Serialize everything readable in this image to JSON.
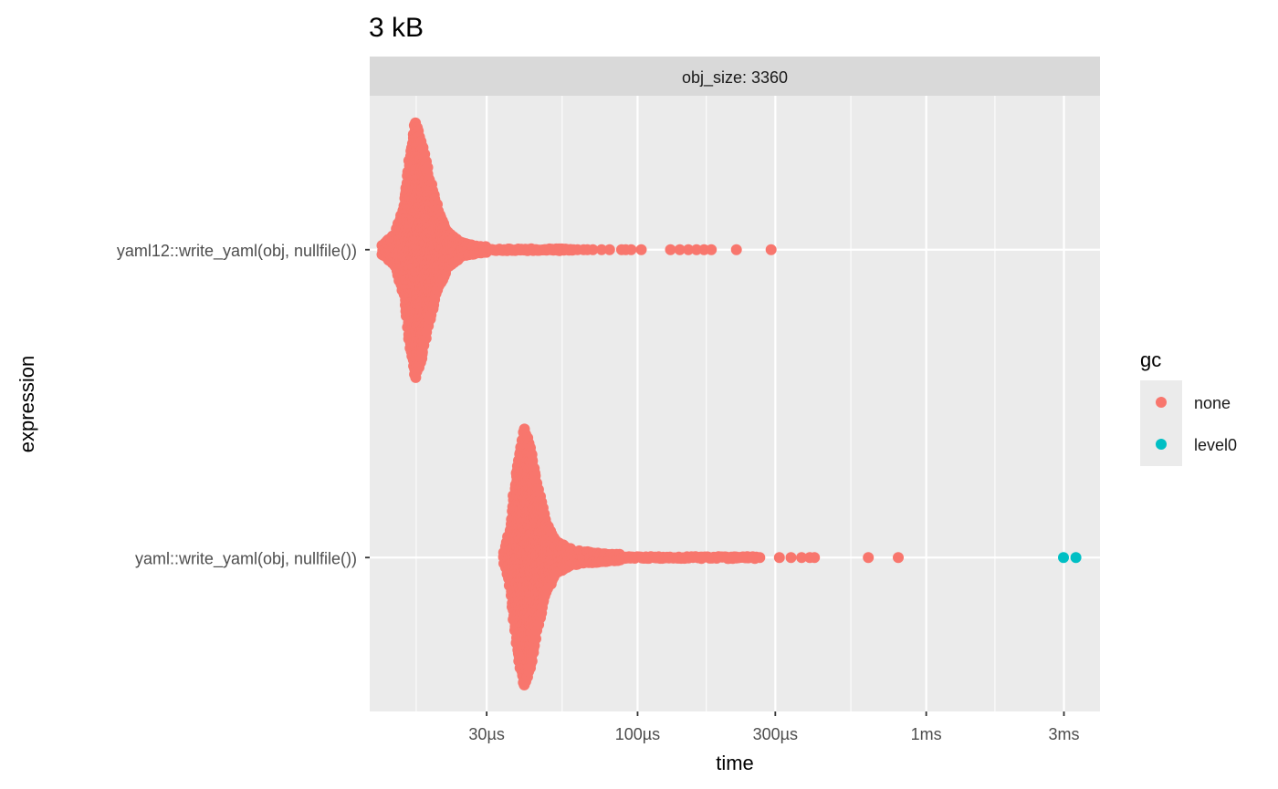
{
  "chart_data": {
    "type": "scatter",
    "subtype": "beeswarm (violin-shaped jittered points)",
    "title": "3 kB",
    "facet_label": "obj_size: 3360",
    "xlabel": "time",
    "ylabel": "expression",
    "x_scale": "log10",
    "x_unit": "seconds",
    "xlim": [
      1.18e-05,
      0.004
    ],
    "x_ticks": [
      {
        "value": 3e-05,
        "label": "30µs"
      },
      {
        "value": 0.0001,
        "label": "100µs"
      },
      {
        "value": 0.0003,
        "label": "300µs"
      },
      {
        "value": 0.001,
        "label": "1ms"
      },
      {
        "value": 0.003,
        "label": "3ms"
      }
    ],
    "x_minor_grid": [
      1.71e-05,
      5.48e-05,
      0.000173,
      0.000548,
      0.00173
    ],
    "categories": [
      "yaml12::write_yaml(obj, nullfile())",
      "yaml::write_yaml(obj, nullfile())"
    ],
    "legend": {
      "title": "gc",
      "position": "right",
      "entries": [
        {
          "label": "none",
          "color": "#F8766D"
        },
        {
          "label": "level0",
          "color": "#00BFC4"
        }
      ]
    },
    "series": [
      {
        "category": "yaml12::write_yaml(obj, nullfile())",
        "gc": "none",
        "color": "#F8766D",
        "density_profile": [
          [
            1.3e-05,
            0.03
          ],
          [
            1.45e-05,
            0.12
          ],
          [
            1.55e-05,
            0.35
          ],
          [
            1.62e-05,
            0.7
          ],
          [
            1.7e-05,
            1.0
          ],
          [
            1.78e-05,
            0.85
          ],
          [
            1.9e-05,
            0.55
          ],
          [
            2.05e-05,
            0.28
          ],
          [
            2.2e-05,
            0.13
          ],
          [
            2.45e-05,
            0.05
          ],
          [
            2.8e-05,
            0.02
          ],
          [
            4e-05,
            0.008
          ],
          [
            6e-05,
            0.004
          ]
        ],
        "max_halfwidth": 0.42,
        "outliers": [
          6.2e-05,
          6.5e-05,
          6.7e-05,
          7e-05,
          7.5e-05,
          8e-05,
          8.8e-05,
          9.1e-05,
          9.5e-05,
          0.000103,
          0.00013,
          0.00014,
          0.00015,
          0.00016,
          0.00017,
          0.00018,
          0.00022,
          0.00029
        ]
      },
      {
        "category": "yaml::write_yaml(obj, nullfile())",
        "gc": "none",
        "color": "#F8766D",
        "density_profile": [
          [
            3.45e-05,
            0.04
          ],
          [
            3.6e-05,
            0.2
          ],
          [
            3.85e-05,
            0.75
          ],
          [
            4.05e-05,
            1.0
          ],
          [
            4.25e-05,
            0.85
          ],
          [
            4.5e-05,
            0.55
          ],
          [
            4.8e-05,
            0.28
          ],
          [
            5.2e-05,
            0.12
          ],
          [
            6e-05,
            0.05
          ],
          [
            8e-05,
            0.02
          ],
          [
            0.00013,
            0.008
          ],
          [
            0.0002,
            0.004
          ],
          [
            0.00026,
            0.002
          ]
        ],
        "max_halfwidth": 0.42,
        "outliers": [
          0.000205,
          0.00022,
          0.000235,
          0.00025,
          0.000265,
          0.00031,
          0.00034,
          0.00037,
          0.000395,
          0.00041,
          0.00063,
          0.0008
        ]
      },
      {
        "category": "yaml::write_yaml(obj, nullfile())",
        "gc": "level0",
        "color": "#00BFC4",
        "outliers": [
          0.00299,
          0.0033
        ]
      }
    ],
    "grid": true
  }
}
